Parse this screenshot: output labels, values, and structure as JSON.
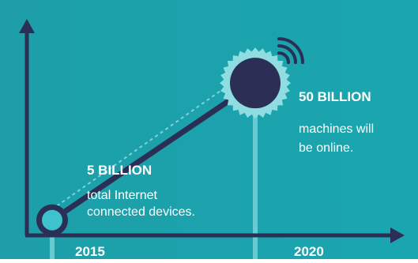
{
  "colors": {
    "background_left": "#1d9ea8",
    "background_right": "#1aa6b0",
    "axis": "#2b2f55",
    "line": "#2b2f55",
    "dashed_line": "#7fd3d8",
    "marker_fill_small": "#3ec2ce",
    "marker_fill_large": "#2b2f55",
    "marker_ring": "#8fdde0",
    "text_white": "#ffffff",
    "stem": "#6fcfd6"
  },
  "icons": {
    "signal": "wifi-signal-icon",
    "gear": "gear-icon"
  },
  "chart_data": {
    "type": "line",
    "x": [
      "2015",
      "2020"
    ],
    "series": [
      {
        "values": [
          5,
          50
        ]
      }
    ],
    "ylabel": "",
    "xlabel": "",
    "annotations": [
      {
        "x": "2015",
        "headline": "5 BILLION",
        "line1": "total Internet",
        "line2": "connected devices."
      },
      {
        "x": "2020",
        "headline": "50 BILLION",
        "line1": "machines will",
        "line2": "be online."
      }
    ],
    "ylim": [
      0,
      70
    ],
    "grid": false,
    "legend": "none"
  }
}
